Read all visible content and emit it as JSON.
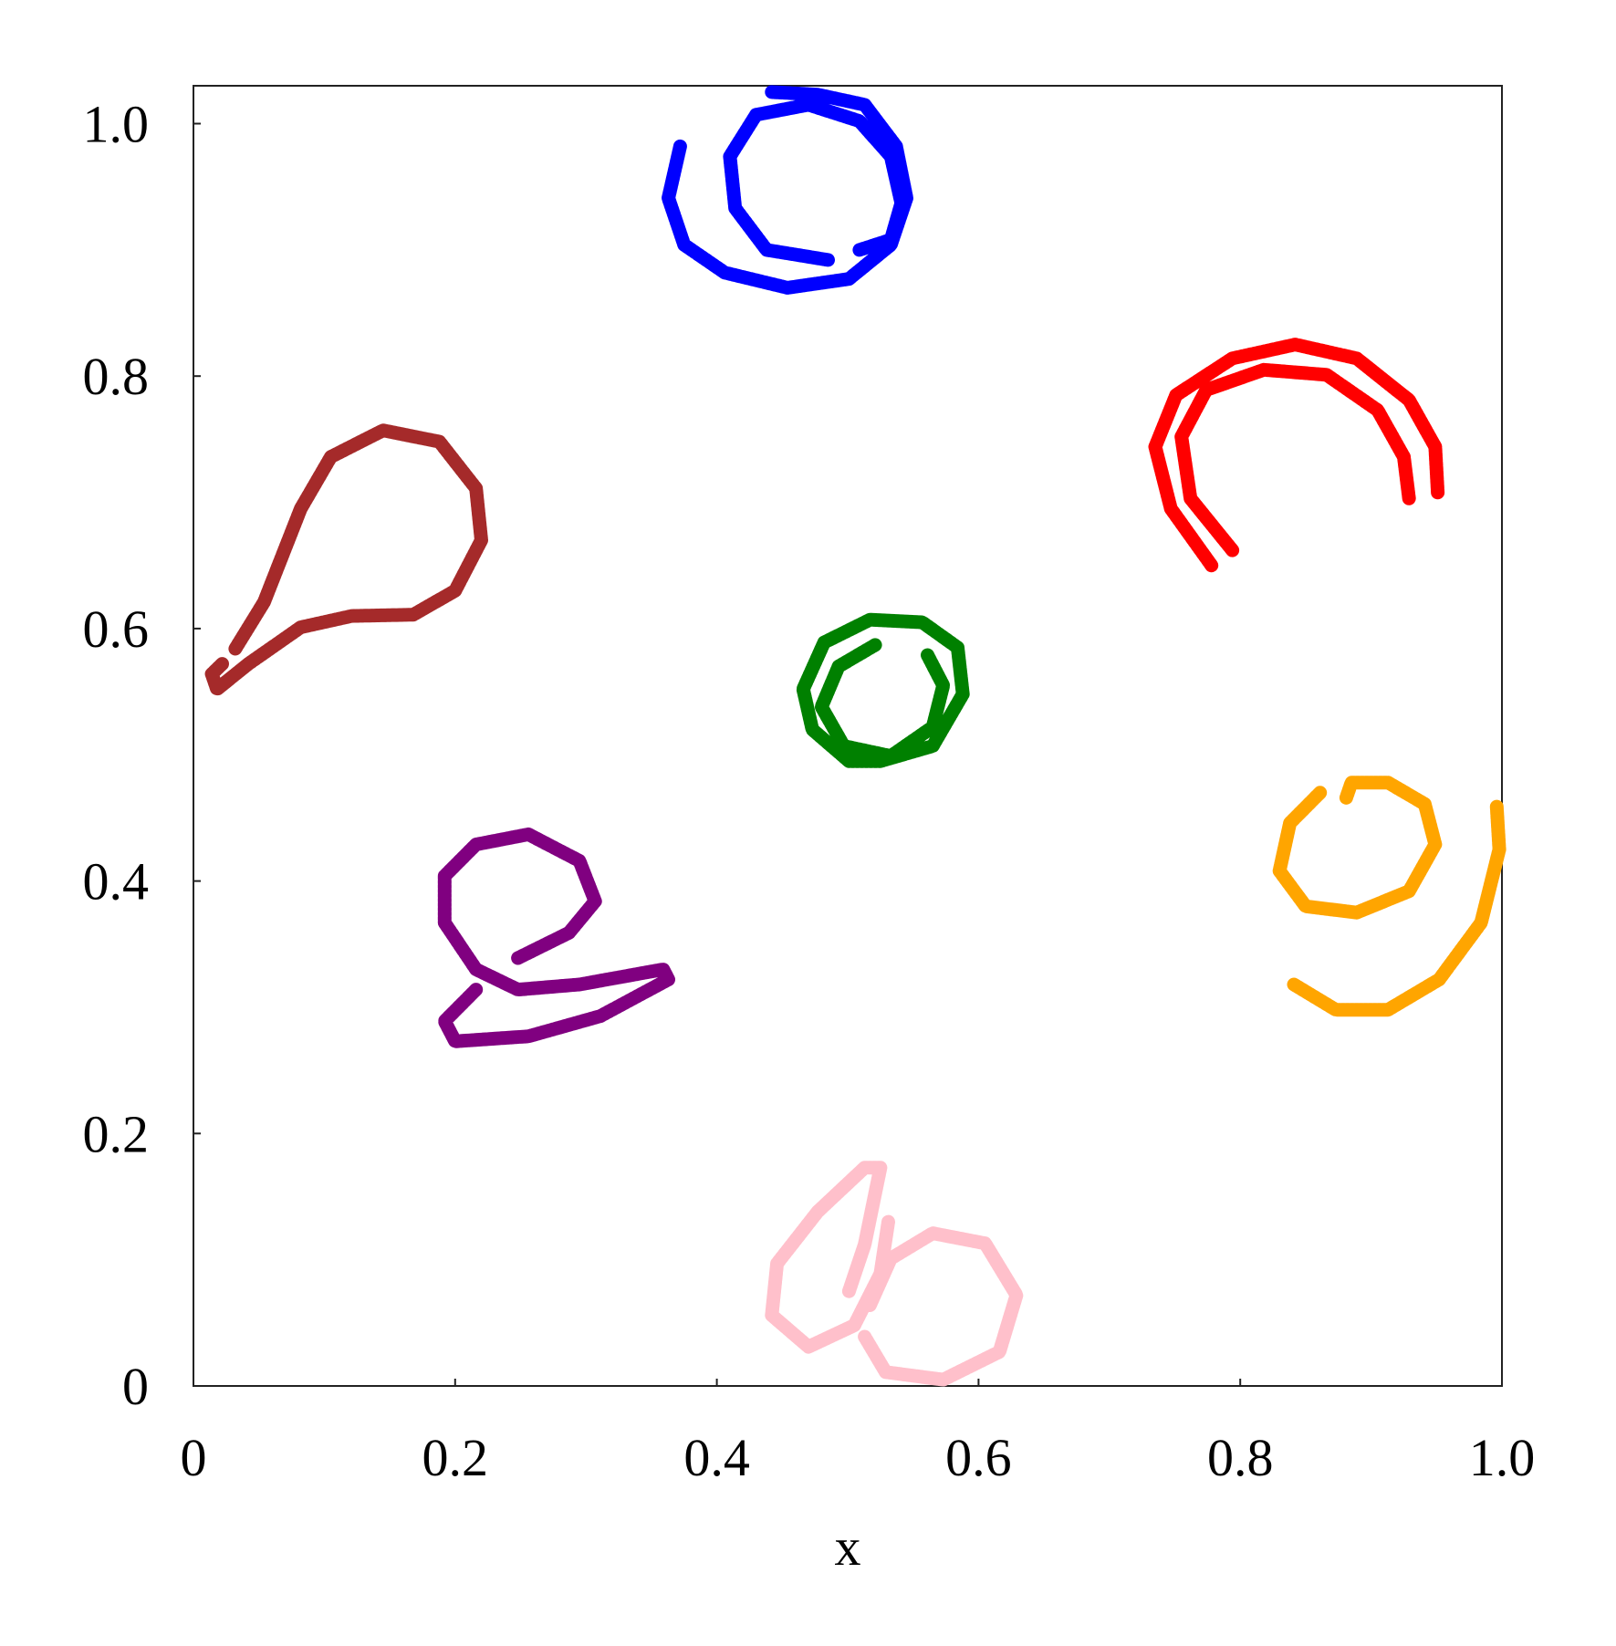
{
  "chart_data": {
    "type": "line",
    "x_label": "x",
    "xlim": [
      0,
      1
    ],
    "ylim": [
      0,
      1.03
    ],
    "xticks": [
      0,
      0.2,
      0.4,
      0.6,
      0.8,
      {
        "value": 1,
        "label": "1.0"
      }
    ],
    "yticks": [
      0,
      0.2,
      0.4,
      0.6,
      0.8,
      {
        "value": 1,
        "label": "1.0"
      }
    ],
    "series": [
      {
        "color": "#0000ff",
        "x": [
          0.372,
          0.363,
          0.375,
          0.406,
          0.454,
          0.501,
          0.533,
          0.545,
          0.537,
          0.513,
          0.477,
          0.442,
          null,
          0.485,
          0.438,
          0.414,
          0.41,
          0.43,
          0.47,
          0.509,
          0.533,
          0.541,
          0.533,
          0.509
        ],
        "y": [
          0.982,
          0.941,
          0.904,
          0.882,
          0.87,
          0.877,
          0.904,
          0.941,
          0.982,
          1.015,
          1.023,
          1.025,
          null,
          0.892,
          0.9,
          0.933,
          0.974,
          1.007,
          1.015,
          1.002,
          0.974,
          0.937,
          0.908,
          0.9
        ]
      },
      {
        "color": "#ff0000",
        "x": [
          0.778,
          0.747,
          0.735,
          0.751,
          0.794,
          0.842,
          0.889,
          0.929,
          0.949,
          0.951,
          null,
          0.794,
          0.762,
          0.755,
          0.774,
          0.818,
          0.866,
          0.905,
          0.925,
          0.929
        ],
        "y": [
          0.65,
          0.695,
          0.744,
          0.785,
          0.814,
          0.825,
          0.814,
          0.781,
          0.744,
          0.707,
          null,
          0.662,
          0.703,
          0.752,
          0.789,
          0.805,
          0.801,
          0.773,
          0.736,
          0.703
        ]
      },
      {
        "color": "#a52a2a",
        "x": [
          0.032,
          0.054,
          0.082,
          0.105,
          0.145,
          0.188,
          0.216,
          0.22,
          0.2,
          0.168,
          0.121,
          0.082,
          0.042,
          0.018,
          0.014,
          0.022
        ],
        "y": [
          0.584,
          0.621,
          0.695,
          0.736,
          0.757,
          0.748,
          0.711,
          0.67,
          0.63,
          0.611,
          0.61,
          0.601,
          0.572,
          0.552,
          0.564,
          0.572
        ]
      },
      {
        "color": "#008000",
        "x": [
          0.525,
          0.565,
          0.588,
          0.584,
          0.557,
          0.517,
          0.482,
          0.466,
          0.473,
          0.501,
          0.525,
          null,
          0.521,
          0.493,
          0.48,
          0.497,
          0.533,
          0.565,
          0.573,
          0.561
        ],
        "y": [
          0.495,
          0.507,
          0.548,
          0.585,
          0.605,
          0.607,
          0.589,
          0.552,
          0.52,
          0.495,
          0.495,
          null,
          0.587,
          0.57,
          0.538,
          0.507,
          0.499,
          0.522,
          0.555,
          0.579
        ]
      },
      {
        "color": "#ffa500",
        "x": [
          0.861,
          0.838,
          0.83,
          0.85,
          0.889,
          0.929,
          0.949,
          0.941,
          0.913,
          0.885,
          0.881,
          null,
          0.841,
          0.873,
          0.913,
          0.952,
          0.984,
          0.998,
          0.996
        ],
        "y": [
          0.47,
          0.446,
          0.408,
          0.38,
          0.375,
          0.392,
          0.429,
          0.461,
          0.478,
          0.478,
          0.466,
          null,
          0.318,
          0.298,
          0.298,
          0.322,
          0.367,
          0.425,
          0.459
        ]
      },
      {
        "color": "#800080",
        "x": [
          0.216,
          0.192,
          0.2,
          0.256,
          0.311,
          0.363,
          0.359,
          0.295,
          0.248,
          0.216,
          0.192,
          0.192,
          0.216,
          0.256,
          0.295,
          0.307,
          0.287,
          0.248
        ],
        "y": [
          0.314,
          0.289,
          0.273,
          0.277,
          0.293,
          0.322,
          0.33,
          0.318,
          0.314,
          0.33,
          0.367,
          0.404,
          0.429,
          0.437,
          0.416,
          0.384,
          0.359,
          0.339
        ]
      },
      {
        "color": "#ffc0cb",
        "x": [
          0.501,
          0.513,
          0.525,
          0.513,
          0.477,
          0.446,
          0.442,
          0.47,
          0.505,
          0.525,
          0.531,
          null,
          0.517,
          0.533,
          0.565,
          0.605,
          0.629,
          0.616,
          0.573,
          0.529,
          0.513
        ],
        "y": [
          0.075,
          0.112,
          0.173,
          0.173,
          0.138,
          0.097,
          0.056,
          0.031,
          0.048,
          0.089,
          0.13,
          null,
          0.064,
          0.101,
          0.121,
          0.113,
          0.072,
          0.027,
          0.005,
          0.011,
          0.039
        ]
      }
    ]
  }
}
